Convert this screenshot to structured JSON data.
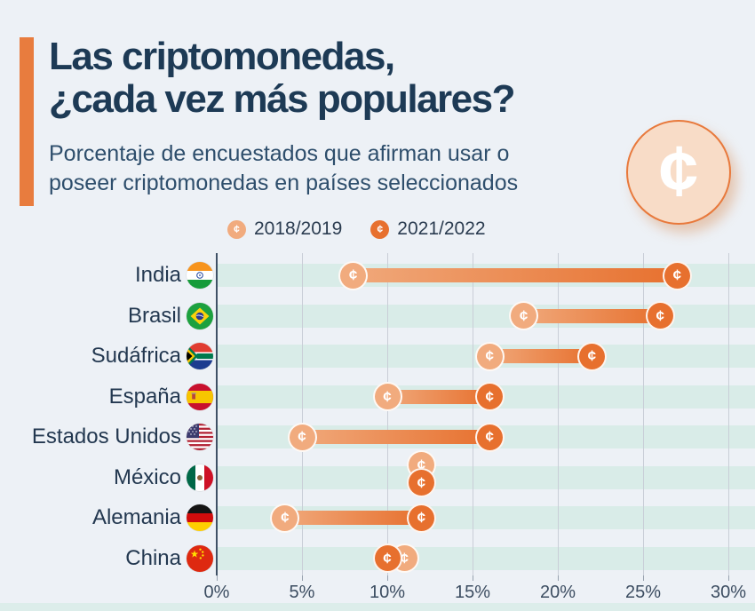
{
  "header": {
    "title_line1": "Las criptomonedas,",
    "title_line2": "¿cada vez más populares?",
    "subtitle_line1": "Porcentaje de encuestados que afirman usar o",
    "subtitle_line2": "poseer criptomonedas en países seleccionados",
    "coin_symbol": "¢"
  },
  "legend": {
    "items": [
      {
        "label": "2018/2019",
        "color": "#f1ab7e"
      },
      {
        "label": "2021/2022",
        "color": "#e7702e"
      }
    ]
  },
  "chart_data": {
    "type": "dumbbell",
    "unit": "%",
    "categories": [
      "India",
      "Brasil",
      "Sudáfrica",
      "España",
      "Estados Unidos",
      "México",
      "Alemania",
      "China"
    ],
    "flag_icons": [
      "flag-india-icon",
      "flag-brasil-icon",
      "flag-sudafrica-icon",
      "flag-espana-icon",
      "flag-estados-unidos-icon",
      "flag-mexico-icon",
      "flag-alemania-icon",
      "flag-china-icon"
    ],
    "series": [
      {
        "name": "2018/2019",
        "values": [
          8,
          18,
          16,
          10,
          5,
          12,
          4,
          11
        ]
      },
      {
        "name": "2021/2022",
        "values": [
          27,
          26,
          22,
          16,
          16,
          12,
          12,
          10
        ]
      }
    ],
    "x_ticks": [
      "0%",
      "5%",
      "10%",
      "15%",
      "20%",
      "25%",
      "30%"
    ],
    "xlim": [
      0,
      30
    ],
    "grid": true,
    "legend_position": "top",
    "colors": {
      "series_2018_2019": "#f1ab7e",
      "series_2021_2022": "#e7702e",
      "row_band": "#d9ece8",
      "gridline": "#c9ced7",
      "axis_line": "#3f5166",
      "tick_text": "#3c4d61"
    }
  }
}
